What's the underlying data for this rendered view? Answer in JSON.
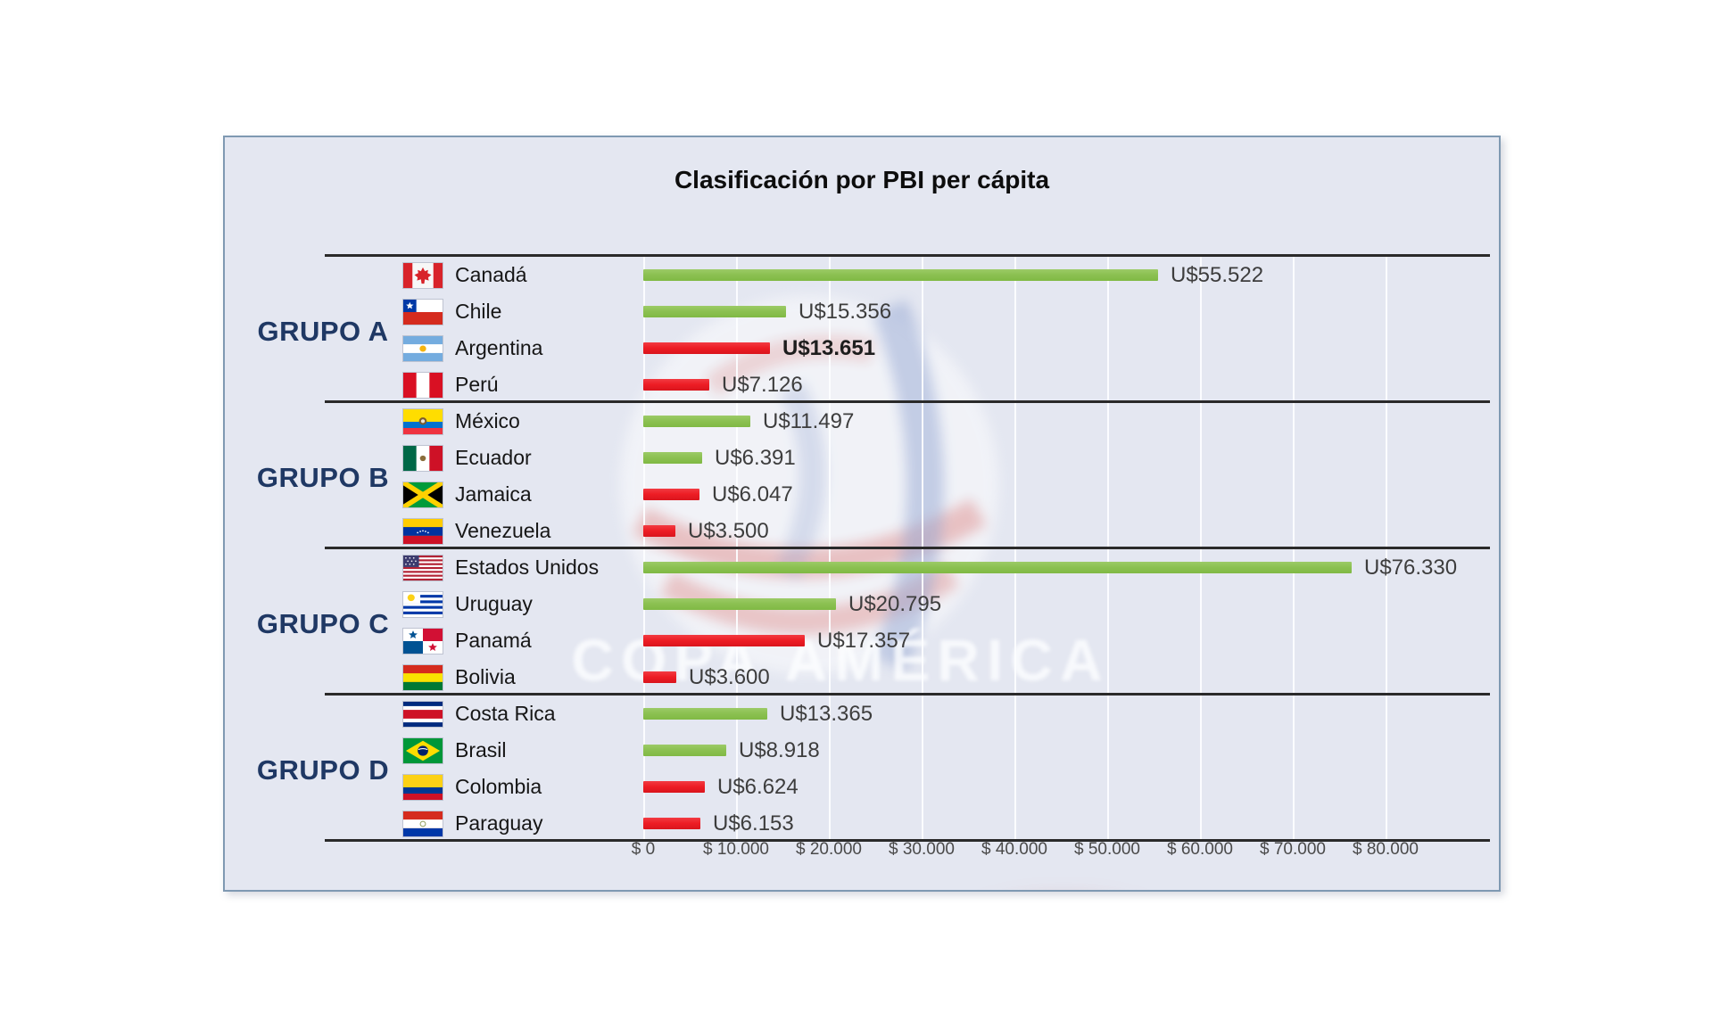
{
  "title": "Clasificación por PBI per cápita",
  "watermark": {
    "text": "COPA AMÉRICA"
  },
  "chart_data": {
    "type": "bar",
    "orientation": "horizontal",
    "title": "Clasificación por PBI per cápita",
    "xlabel": "",
    "ylabel": "",
    "unit_prefix": "U$",
    "xlim": [
      0,
      90000
    ],
    "grid": "vertical",
    "x_ticks": [
      "$ 0",
      "$ 10.000",
      "$ 20.000",
      "$ 30.000",
      "$ 40.000",
      "$ 50.000",
      "$ 60.000",
      "$ 70.000",
      "$ 80.000"
    ],
    "x_tick_values": [
      0,
      10000,
      20000,
      30000,
      40000,
      50000,
      60000,
      70000,
      80000
    ],
    "colors": {
      "green": "#8cc152",
      "red": "#ed1c24"
    },
    "groups": [
      {
        "label": "GRUPO A",
        "rows": [
          {
            "country": "Canadá",
            "flag": "canada",
            "value": 55522,
            "value_label": "U$55.522",
            "color": "green",
            "bold": false
          },
          {
            "country": "Chile",
            "flag": "chile",
            "value": 15356,
            "value_label": "U$15.356",
            "color": "green",
            "bold": false
          },
          {
            "country": "Argentina",
            "flag": "argentina",
            "value": 13651,
            "value_label": "U$13.651",
            "color": "red",
            "bold": true
          },
          {
            "country": "Perú",
            "flag": "peru",
            "value": 7126,
            "value_label": "U$7.126",
            "color": "red",
            "bold": false
          }
        ]
      },
      {
        "label": "GRUPO B",
        "rows": [
          {
            "country": "México",
            "flag": "ecuador",
            "value": 11497,
            "value_label": "U$11.497",
            "color": "green",
            "bold": false
          },
          {
            "country": "Ecuador",
            "flag": "mexico",
            "value": 6391,
            "value_label": "U$6.391",
            "color": "green",
            "bold": false
          },
          {
            "country": "Jamaica",
            "flag": "jamaica",
            "value": 6047,
            "value_label": "U$6.047",
            "color": "red",
            "bold": false
          },
          {
            "country": "Venezuela",
            "flag": "venezuela",
            "value": 3500,
            "value_label": "U$3.500",
            "color": "red",
            "bold": false
          }
        ]
      },
      {
        "label": "GRUPO C",
        "rows": [
          {
            "country": "Estados Unidos",
            "flag": "usa",
            "value": 76330,
            "value_label": "U$76.330",
            "color": "green",
            "bold": false
          },
          {
            "country": "Uruguay",
            "flag": "uruguay",
            "value": 20795,
            "value_label": "U$20.795",
            "color": "green",
            "bold": false
          },
          {
            "country": "Panamá",
            "flag": "panama",
            "value": 17357,
            "value_label": "U$17.357",
            "color": "red",
            "bold": false
          },
          {
            "country": "Bolivia",
            "flag": "bolivia",
            "value": 3600,
            "value_label": "U$3.600",
            "color": "red",
            "bold": false
          }
        ]
      },
      {
        "label": "GRUPO D",
        "rows": [
          {
            "country": "Costa Rica",
            "flag": "costarica",
            "value": 13365,
            "value_label": "U$13.365",
            "color": "green",
            "bold": false
          },
          {
            "country": "Brasil",
            "flag": "brasil",
            "value": 8918,
            "value_label": "U$8.918",
            "color": "green",
            "bold": false
          },
          {
            "country": "Colombia",
            "flag": "colombia",
            "value": 6624,
            "value_label": "U$6.624",
            "color": "red",
            "bold": false
          },
          {
            "country": "Paraguay",
            "flag": "paraguay",
            "value": 6153,
            "value_label": "U$6.153",
            "color": "red",
            "bold": false
          }
        ]
      }
    ]
  }
}
